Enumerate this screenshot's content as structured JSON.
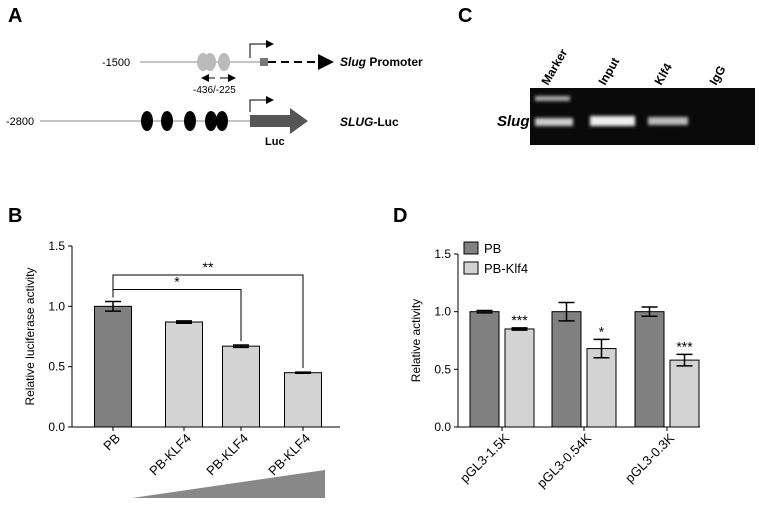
{
  "panels": {
    "A": {
      "label": "A",
      "start1": "-1500",
      "gene1": "Slug",
      "label1": " Promoter",
      "primers": "-436/-225",
      "start2": "-2800",
      "gene2": "SLUG",
      "label2": "-Luc",
      "reporter": "Luc"
    },
    "C": {
      "label": "C",
      "lanes": [
        "Marker",
        "Input",
        "Klf4",
        "IgG"
      ],
      "row": "Slug"
    }
  },
  "chart_data": [
    {
      "type": "bar",
      "panel": "B",
      "ylabel": "Relative luciferase activity",
      "categories": [
        "PB",
        "PB-KLF4",
        "PB-KLF4",
        "PB-KLF4"
      ],
      "values": [
        1.0,
        0.87,
        0.67,
        0.45
      ],
      "errors": [
        0.04,
        0.01,
        0.01,
        0.005
      ],
      "colors": [
        "#808080",
        "#d3d3d3",
        "#d3d3d3",
        "#d3d3d3"
      ],
      "annotations": [
        "*",
        "**"
      ],
      "ylim": [
        0,
        1.5
      ],
      "yticks": [
        {
          "value": 0,
          "label": "0.0"
        },
        {
          "value": 0.5,
          "label": "0.5"
        },
        {
          "value": 1,
          "label": "1.0"
        },
        {
          "value": 1.5,
          "label": "1.5"
        }
      ]
    },
    {
      "type": "bar",
      "panel": "D",
      "ylabel": "Relative activity",
      "categories": [
        "pGL3-1.5K",
        "pGL3-0.54K",
        "pGL3-0.3K"
      ],
      "series": [
        {
          "name": "PB",
          "color": "#808080",
          "values": [
            1.0,
            1.0,
            1.0
          ],
          "errors": [
            0.01,
            0.08,
            0.04
          ]
        },
        {
          "name": "PB-Klf4",
          "color": "#d3d3d3",
          "values": [
            0.85,
            0.68,
            0.58
          ],
          "errors": [
            0.01,
            0.08,
            0.05
          ],
          "significance": [
            "***",
            "*",
            "***"
          ]
        }
      ],
      "legend": "top-left",
      "ylim": [
        0,
        1.5
      ],
      "yticks": [
        {
          "value": 0,
          "label": "0.0"
        },
        {
          "value": 0.5,
          "label": "0.5"
        },
        {
          "value": 1,
          "label": "1.0"
        },
        {
          "value": 1.5,
          "label": "1.5"
        }
      ]
    }
  ]
}
